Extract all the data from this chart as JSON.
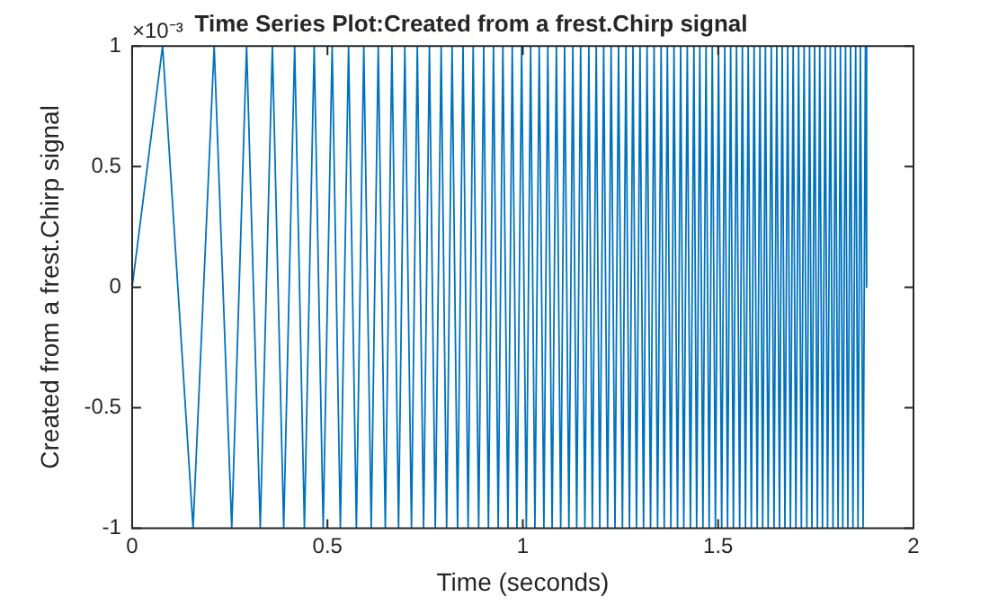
{
  "chart_data": {
    "type": "line",
    "title": "Time Series Plot:Created from a frest.Chirp signal",
    "xlabel": "Time (seconds)",
    "ylabel": "Created from a frest.Chirp signal",
    "annotations": [
      "×10⁻³"
    ],
    "xlim": [
      0,
      2
    ],
    "xticks": [
      0,
      0.5,
      1,
      1.5,
      2
    ],
    "ylim": [
      -1,
      1
    ],
    "yticks": [
      -1,
      -0.5,
      0,
      0.5,
      1
    ],
    "grid": false,
    "legend": false,
    "marker": "none",
    "line_style": "solid",
    "series": [
      {
        "color": "#0072bd",
        "x": [
          0,
          0.078,
          0.156,
          0.21,
          0.255,
          0.293,
          0.328,
          0.359,
          0.388,
          0.416,
          0.441,
          0.466,
          0.489,
          0.512,
          0.533,
          0.554,
          0.574,
          0.593,
          0.612,
          0.63,
          0.648,
          0.665,
          0.682,
          0.698,
          0.715,
          0.73,
          0.746,
          0.761,
          0.776,
          0.791,
          0.805,
          0.819,
          0.833,
          0.847,
          0.86,
          0.873,
          0.887,
          0.9,
          0.912,
          0.925,
          0.937,
          0.949,
          0.962,
          0.973,
          0.985,
          0.997,
          1.009,
          1.02,
          1.031,
          1.042,
          1.054,
          1.064,
          1.075,
          1.086,
          1.097,
          1.107,
          1.118,
          1.128,
          1.138,
          1.148,
          1.159,
          1.169,
          1.178,
          1.188,
          1.197,
          1.207,
          1.217,
          1.226,
          1.236,
          1.245,
          1.255,
          1.264,
          1.273,
          1.282,
          1.291,
          1.3,
          1.309,
          1.318,
          1.327,
          1.336,
          1.345,
          1.354,
          1.362,
          1.37,
          1.379,
          1.387,
          1.396,
          1.404,
          1.412,
          1.421,
          1.429,
          1.438,
          1.445,
          1.453,
          1.461,
          1.469,
          1.477,
          1.485,
          1.493,
          1.501,
          1.509,
          1.517,
          1.524,
          1.532,
          1.539,
          1.547,
          1.555,
          1.562,
          1.57,
          1.577,
          1.585,
          1.592,
          1.6,
          1.607,
          1.614,
          1.621,
          1.628,
          1.636,
          1.643,
          1.65,
          1.657,
          1.664,
          1.671,
          1.678,
          1.685,
          1.692,
          1.699,
          1.706,
          1.713,
          1.72,
          1.727,
          1.734,
          1.74,
          1.747,
          1.754,
          1.76,
          1.767,
          1.774,
          1.78,
          1.787,
          1.794,
          1.8,
          1.807,
          1.813,
          1.819,
          1.826,
          1.832,
          1.839,
          1.845,
          1.852,
          1.858,
          1.864,
          1.871,
          1.877,
          1.88
        ],
        "values": [
          0,
          1,
          -1,
          1,
          -1,
          1,
          -1,
          1,
          -1,
          1,
          -1,
          1,
          -1,
          1,
          -1,
          1,
          -1,
          1,
          -1,
          1,
          -1,
          1,
          -1,
          1,
          -1,
          1,
          -1,
          1,
          -1,
          1,
          -1,
          1,
          -1,
          1,
          -1,
          1,
          -1,
          1,
          -1,
          1,
          -1,
          1,
          -1,
          1,
          -1,
          1,
          -1,
          1,
          -1,
          1,
          -1,
          1,
          -1,
          1,
          -1,
          1,
          -1,
          1,
          -1,
          1,
          -1,
          1,
          -1,
          1,
          -1,
          1,
          -1,
          1,
          -1,
          1,
          -1,
          1,
          -1,
          1,
          -1,
          1,
          -1,
          1,
          -1,
          1,
          -1,
          1,
          -1,
          1,
          -1,
          1,
          -1,
          1,
          -1,
          1,
          -1,
          1,
          -1,
          1,
          -1,
          1,
          -1,
          1,
          -1,
          1,
          -1,
          1,
          -1,
          1,
          -1,
          1,
          -1,
          1,
          -1,
          1,
          -1,
          1,
          -1,
          1,
          -1,
          1,
          -1,
          1,
          -1,
          1,
          -1,
          1,
          -1,
          1,
          -1,
          1,
          -1,
          1,
          -1,
          1,
          -1,
          1,
          -1,
          1,
          -1,
          1,
          -1,
          1,
          -1,
          1,
          -1,
          1,
          -1,
          1,
          -1,
          1,
          -1,
          1,
          -1,
          1,
          -1,
          1,
          -1,
          1,
          0
        ]
      }
    ]
  }
}
